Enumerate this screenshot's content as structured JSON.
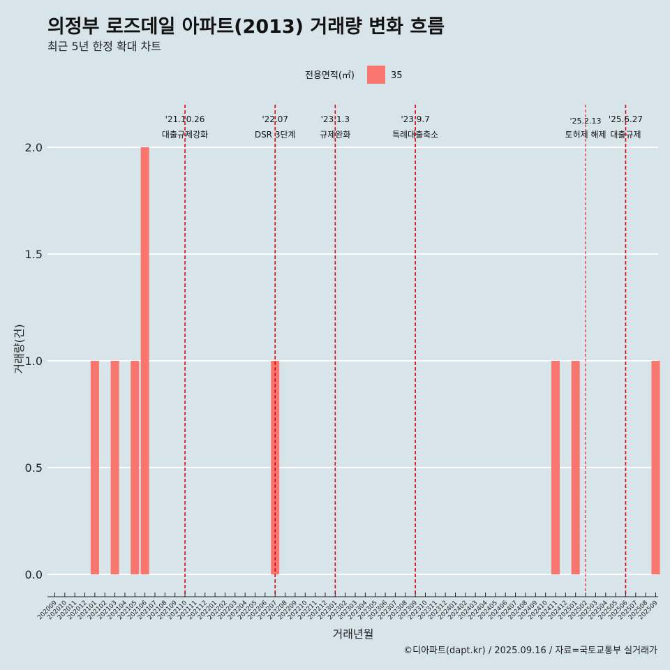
{
  "title": "의정부 로즈데일 아파트(2013) 거래량 변화 흐름",
  "subtitle": "최근 5년 한정 확대 차트",
  "caption": "©디아파트(dapt.kr) / 2025.09.16 / 자료=국토교통부 실거래가",
  "chart_data": {
    "type": "bar",
    "xlabel": "거래년월",
    "ylabel": "거래량(건)",
    "ylim": [
      -0.1,
      2.2
    ],
    "yticks": [
      "0.0",
      "0.5",
      "1.0",
      "1.5",
      "2.0"
    ],
    "grid": "horizontal",
    "legend": {
      "title": "전용면적(㎡)",
      "position": "top",
      "entries": [
        {
          "label": "35",
          "color": "#f8766d"
        }
      ]
    },
    "categories": [
      "202009",
      "202010",
      "202011",
      "202012",
      "202101",
      "202102",
      "202103",
      "202104",
      "202105",
      "202106",
      "202107",
      "202108",
      "202109",
      "202110",
      "202111",
      "202112",
      "202201",
      "202202",
      "202203",
      "202204",
      "202205",
      "202206",
      "202207",
      "202208",
      "202209",
      "202210",
      "202211",
      "202212",
      "202301",
      "202302",
      "202303",
      "202304",
      "202305",
      "202306",
      "202307",
      "202308",
      "202309",
      "202310",
      "202311",
      "202312",
      "202401",
      "202402",
      "202403",
      "202404",
      "202405",
      "202406",
      "202407",
      "202408",
      "202409",
      "202410",
      "202411",
      "202412",
      "202501",
      "202502",
      "202503",
      "202504",
      "202505",
      "202506",
      "202507",
      "202508",
      "202509"
    ],
    "series": [
      {
        "color": "#f8766d",
        "bars": [
          {
            "x": "202101",
            "value": 1
          },
          {
            "x": "202103",
            "value": 1
          },
          {
            "x": "202105",
            "value": 1
          },
          {
            "x": "202106",
            "value": 2
          },
          {
            "x": "202207",
            "value": 1
          },
          {
            "x": "202411",
            "value": 1
          },
          {
            "x": "202501",
            "value": 1
          },
          {
            "x": "202509",
            "value": 1
          }
        ]
      }
    ],
    "annotations": [
      {
        "x": "202110",
        "date_label": "'21.10.26",
        "event_label": "대출규제강화",
        "style": "dashed"
      },
      {
        "x": "202207",
        "date_label": "'22.07",
        "event_label": "DSR 3단계",
        "style": "dashed"
      },
      {
        "x": "202301",
        "date_label": "'23.1.3",
        "event_label": "규제완화",
        "style": "dashed"
      },
      {
        "x": "202309",
        "date_label": "'23.9.7",
        "event_label": "특례대출축소",
        "style": "dashed"
      },
      {
        "x": "202502",
        "date_label": "'25.2.13",
        "event_label": "토허제 해제",
        "style": "thin-dashed"
      },
      {
        "x": "202506",
        "date_label": "'25.6.27",
        "event_label": "대출규제",
        "style": "dashed"
      }
    ]
  }
}
